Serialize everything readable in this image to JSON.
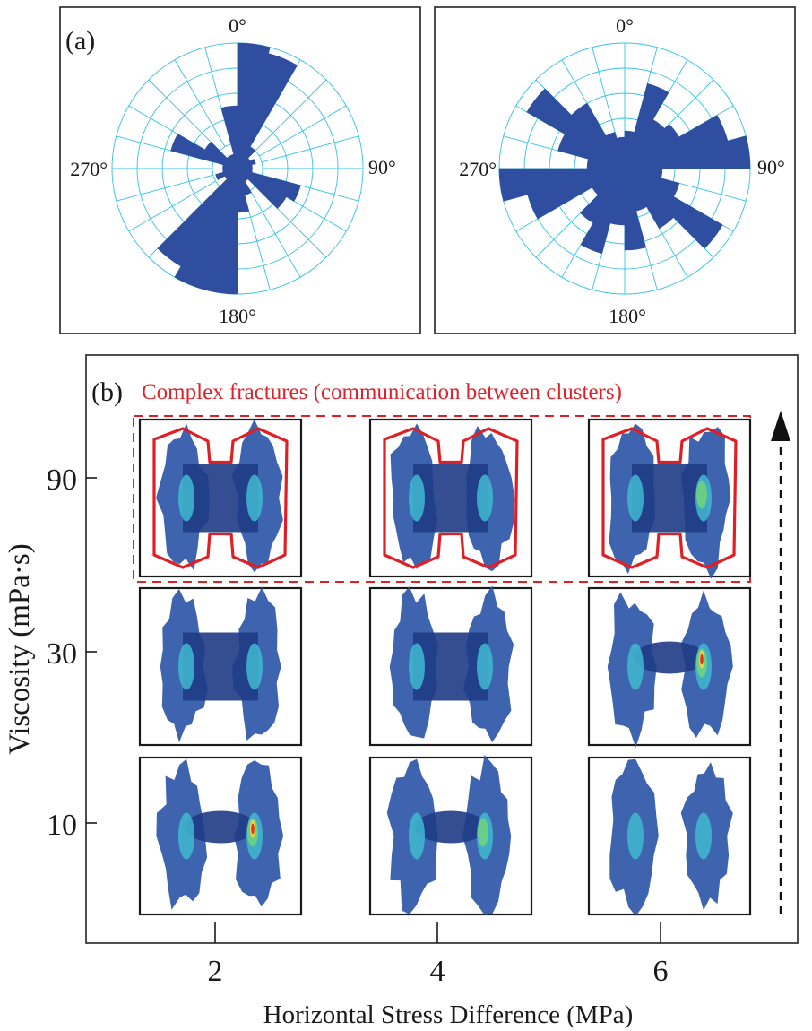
{
  "panel_a": {
    "label": "(a)",
    "left_rose": {
      "angle_labels": {
        "top": "0°",
        "right": "90°",
        "bottom": "180°",
        "left": "270°"
      },
      "ring_count": 5,
      "bin_width_deg": 15,
      "petals": [
        {
          "angle_deg": 0,
          "length": 1.0
        },
        {
          "angle_deg": 15,
          "length": 0.95
        },
        {
          "angle_deg": 30,
          "length": 0.2
        },
        {
          "angle_deg": 60,
          "length": 0.15
        },
        {
          "angle_deg": 105,
          "length": 0.52
        },
        {
          "angle_deg": 120,
          "length": 0.45
        },
        {
          "angle_deg": 150,
          "length": 0.22
        },
        {
          "angle_deg": 165,
          "length": 0.35
        },
        {
          "angle_deg": 180,
          "length": 1.0
        },
        {
          "angle_deg": 195,
          "length": 1.0
        },
        {
          "angle_deg": 210,
          "length": 0.9
        },
        {
          "angle_deg": 240,
          "length": 0.18
        },
        {
          "angle_deg": 285,
          "length": 0.55
        },
        {
          "angle_deg": 300,
          "length": 0.3
        },
        {
          "angle_deg": 345,
          "length": 0.5
        }
      ]
    },
    "right_rose": {
      "angle_labels": {
        "top": "0°",
        "right": "90°",
        "bottom": "180°",
        "left": "270°"
      },
      "ring_count": 5,
      "bin_width_deg": 15,
      "petals": [
        {
          "angle_deg": 0,
          "length": 0.3
        },
        {
          "angle_deg": 15,
          "length": 0.7
        },
        {
          "angle_deg": 30,
          "length": 0.45
        },
        {
          "angle_deg": 45,
          "length": 0.5
        },
        {
          "angle_deg": 60,
          "length": 0.85
        },
        {
          "angle_deg": 75,
          "length": 1.0
        },
        {
          "angle_deg": 90,
          "length": 0.3
        },
        {
          "angle_deg": 105,
          "length": 0.45
        },
        {
          "angle_deg": 120,
          "length": 0.9
        },
        {
          "angle_deg": 135,
          "length": 0.55
        },
        {
          "angle_deg": 150,
          "length": 0.35
        },
        {
          "angle_deg": 165,
          "length": 0.65
        },
        {
          "angle_deg": 180,
          "length": 0.45
        },
        {
          "angle_deg": 195,
          "length": 0.7
        },
        {
          "angle_deg": 210,
          "length": 0.5
        },
        {
          "angle_deg": 225,
          "length": 0.3
        },
        {
          "angle_deg": 240,
          "length": 0.8
        },
        {
          "angle_deg": 255,
          "length": 1.0
        },
        {
          "angle_deg": 270,
          "length": 0.3
        },
        {
          "angle_deg": 285,
          "length": 0.55
        },
        {
          "angle_deg": 300,
          "length": 0.9
        },
        {
          "angle_deg": 315,
          "length": 0.6
        },
        {
          "angle_deg": 330,
          "length": 0.3
        },
        {
          "angle_deg": 345,
          "length": 0.25
        }
      ]
    }
  },
  "panel_b": {
    "label": "(b)",
    "annotation": "Complex fractures (communication between clusters)",
    "y_axis_label": "Viscosity (mPa·s)",
    "x_axis_label": "Horizontal Stress Difference (MPa)",
    "y_ticks": [
      "90",
      "30",
      "10"
    ],
    "x_ticks": [
      "2",
      "4",
      "6"
    ],
    "rows": [
      {
        "viscosity": "90",
        "cells": [
          {
            "stress": "2",
            "pattern": "connected",
            "hot": "low",
            "outlined": true
          },
          {
            "stress": "4",
            "pattern": "connected",
            "hot": "low",
            "outlined": true
          },
          {
            "stress": "6",
            "pattern": "connected",
            "hot": "medium",
            "outlined": true
          }
        ]
      },
      {
        "viscosity": "30",
        "cells": [
          {
            "stress": "2",
            "pattern": "connected",
            "hot": "low",
            "outlined": false
          },
          {
            "stress": "4",
            "pattern": "connected",
            "hot": "low",
            "outlined": false
          },
          {
            "stress": "6",
            "pattern": "partial",
            "hot": "high",
            "outlined": false
          }
        ]
      },
      {
        "viscosity": "10",
        "cells": [
          {
            "stress": "2",
            "pattern": "partial",
            "hot": "high",
            "outlined": false
          },
          {
            "stress": "4",
            "pattern": "partial",
            "hot": "medium",
            "outlined": false
          },
          {
            "stress": "6",
            "pattern": "separate",
            "hot": "none",
            "outlined": false
          }
        ]
      }
    ]
  },
  "colors": {
    "petal": "#2f4ea0",
    "grid": "#35c3e6",
    "outline": "#e01f25",
    "mesh": "#2e57a8"
  }
}
